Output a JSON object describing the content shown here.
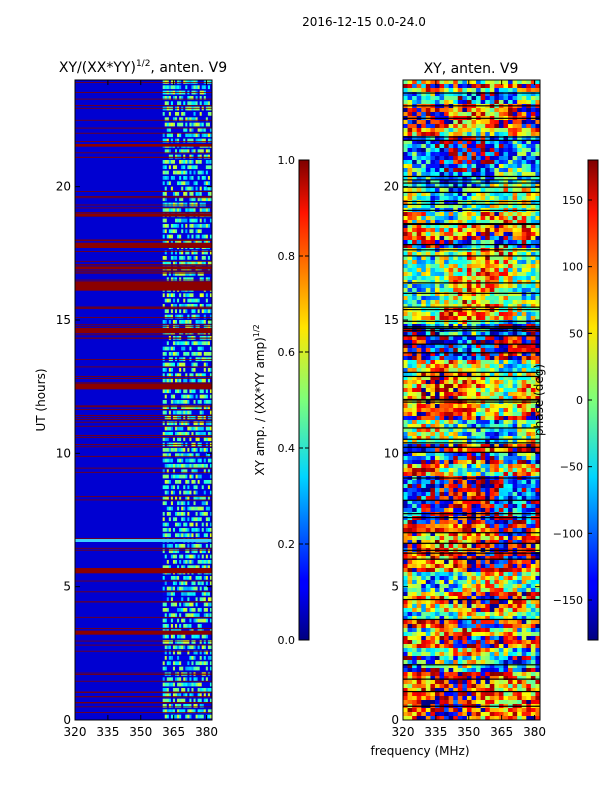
{
  "suptitle": "2016-12-15 0.0-24.0",
  "shared_xlabel": "frequency (MHz)",
  "chart_data": [
    {
      "type": "heatmap",
      "title_main": "XY/(XX*YY)",
      "title_sup": "1/2",
      "title_tail": ", anten. V9",
      "ylabel": "UT (hours)",
      "xlim": [
        320,
        382.5
      ],
      "ylim": [
        0,
        24
      ],
      "xticks": [
        320,
        335,
        350,
        365,
        380
      ],
      "yticks": [
        0,
        5,
        10,
        15,
        20
      ],
      "colorbar": {
        "label_main": "XY amp. / (XX*YY amp)",
        "label_sup": "1/2",
        "range": [
          0.0,
          1.0
        ],
        "ticks": [
          "0.0",
          "0.2",
          "0.4",
          "0.6",
          "0.8",
          "1.0"
        ],
        "colormap": "jet"
      },
      "background_value": 0.08,
      "active_band_mhz": [
        360,
        382.5
      ],
      "flagged_hours_high": [
        [
          16.1,
          16.45
        ],
        [
          14.5,
          14.7
        ],
        [
          12.4,
          12.6
        ],
        [
          17.7,
          17.9
        ],
        [
          16.9,
          17.0
        ],
        [
          5.5,
          5.7
        ],
        [
          3.2,
          3.35
        ],
        [
          21.5,
          21.6
        ],
        [
          18.9,
          19.0
        ]
      ],
      "bright_line_hour": 6.75
    },
    {
      "type": "heatmap",
      "title": "XY, anten. V9",
      "xlim": [
        320,
        382.5
      ],
      "ylim": [
        0,
        24
      ],
      "xticks": [
        320,
        335,
        350,
        365,
        380
      ],
      "yticks": [
        0,
        5,
        10,
        15,
        20
      ],
      "colorbar": {
        "label": "phase (deg)",
        "range": [
          -180,
          180
        ],
        "ticks": [
          "150",
          "100",
          "50",
          "0",
          "−50",
          "−100",
          "−150"
        ],
        "colormap": "jet"
      }
    }
  ]
}
